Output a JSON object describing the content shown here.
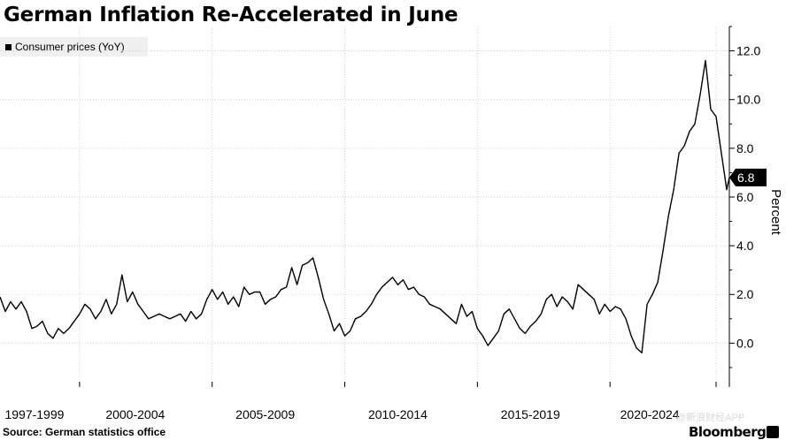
{
  "title": "German Inflation Re-Accelerated in June",
  "legend": {
    "label": "Consumer prices (YoY)",
    "swatch_color": "#000000"
  },
  "source": "Source: German statistics office",
  "brand": "Bloomberg",
  "watermark": "@新浪财经APP",
  "chart_data": {
    "type": "line",
    "title": "German Inflation Re-Accelerated in June",
    "xlabel": "",
    "ylabel": "Percent",
    "ylim": [
      -1.8,
      13
    ],
    "xlim": [
      1996.0,
      2023.5
    ],
    "y_ticks": [
      "0.0",
      "2.0",
      "4.0",
      "6.0",
      "8.0",
      "10.0",
      "12.0"
    ],
    "y_tick_values": [
      0,
      2,
      4,
      6,
      8,
      10,
      12
    ],
    "x_tick_labels": [
      "1997-1999",
      "2000-2004",
      "2005-2009",
      "2010-2014",
      "2015-2019",
      "2020-2024"
    ],
    "x_tick_positions": [
      1999.0,
      2004.0,
      2009.0,
      2014.0,
      2019.0,
      2023.0
    ],
    "x_label_centers": [
      1997.3,
      2001.1,
      2006.0,
      2011.0,
      2016.0,
      2020.5
    ],
    "grid": true,
    "last_value_label": "6.8",
    "series": [
      {
        "name": "Consumer prices (YoY)",
        "color": "#000000",
        "x": [
          1996.0,
          1996.2,
          1996.4,
          1996.6,
          1996.8,
          1997.0,
          1997.2,
          1997.4,
          1997.6,
          1997.8,
          1998.0,
          1998.2,
          1998.4,
          1998.6,
          1998.8,
          1999.0,
          1999.2,
          1999.4,
          1999.6,
          1999.8,
          2000.0,
          2000.2,
          2000.4,
          2000.6,
          2000.8,
          2001.0,
          2001.2,
          2001.4,
          2001.6,
          2001.8,
          2002.0,
          2002.2,
          2002.4,
          2002.6,
          2002.8,
          2003.0,
          2003.2,
          2003.4,
          2003.6,
          2003.8,
          2004.0,
          2004.2,
          2004.4,
          2004.6,
          2004.8,
          2005.0,
          2005.2,
          2005.4,
          2005.6,
          2005.8,
          2006.0,
          2006.2,
          2006.4,
          2006.6,
          2006.8,
          2007.0,
          2007.2,
          2007.4,
          2007.6,
          2007.8,
          2008.0,
          2008.2,
          2008.4,
          2008.6,
          2008.8,
          2009.0,
          2009.2,
          2009.4,
          2009.6,
          2009.8,
          2010.0,
          2010.2,
          2010.4,
          2010.6,
          2010.8,
          2011.0,
          2011.2,
          2011.4,
          2011.6,
          2011.8,
          2012.0,
          2012.2,
          2012.4,
          2012.6,
          2012.8,
          2013.0,
          2013.2,
          2013.4,
          2013.6,
          2013.8,
          2014.0,
          2014.2,
          2014.4,
          2014.6,
          2014.8,
          2015.0,
          2015.2,
          2015.4,
          2015.6,
          2015.8,
          2016.0,
          2016.2,
          2016.4,
          2016.6,
          2016.8,
          2017.0,
          2017.2,
          2017.4,
          2017.6,
          2017.8,
          2018.0,
          2018.2,
          2018.4,
          2018.6,
          2018.8,
          2019.0,
          2019.2,
          2019.4,
          2019.6,
          2019.8,
          2020.0,
          2020.2,
          2020.4,
          2020.6,
          2020.8,
          2021.0,
          2021.2,
          2021.4,
          2021.6,
          2021.8,
          2022.0,
          2022.2,
          2022.4,
          2022.6,
          2022.8,
          2023.0,
          2023.2,
          2023.4,
          2023.5
        ],
        "values": [
          1.9,
          1.3,
          1.7,
          1.4,
          1.7,
          1.3,
          0.6,
          0.7,
          0.9,
          0.4,
          0.2,
          0.6,
          0.4,
          0.6,
          0.9,
          1.2,
          1.6,
          1.4,
          1.0,
          1.3,
          1.8,
          1.2,
          1.6,
          2.8,
          1.7,
          2.1,
          1.6,
          1.3,
          1.0,
          1.1,
          1.2,
          1.1,
          1.0,
          1.1,
          1.2,
          0.9,
          1.3,
          1.0,
          1.2,
          1.8,
          2.2,
          1.8,
          2.1,
          1.6,
          1.9,
          1.5,
          2.3,
          2.0,
          2.1,
          2.1,
          1.6,
          1.8,
          1.9,
          2.2,
          2.3,
          3.1,
          2.4,
          3.2,
          3.3,
          3.5,
          2.7,
          1.8,
          1.2,
          0.5,
          0.8,
          0.3,
          0.5,
          1.0,
          1.1,
          1.3,
          1.6,
          2.0,
          2.3,
          2.5,
          2.7,
          2.4,
          2.6,
          2.2,
          2.3,
          2.0,
          1.9,
          1.6,
          1.5,
          1.4,
          1.2,
          1.0,
          0.8,
          1.6,
          1.1,
          1.3,
          0.6,
          0.3,
          -0.1,
          0.2,
          0.5,
          1.2,
          1.4,
          1.0,
          0.6,
          0.4,
          0.7,
          0.9,
          1.2,
          1.8,
          2.0,
          1.5,
          1.9,
          1.7,
          1.4,
          2.4,
          2.2,
          2.0,
          1.8,
          1.2,
          1.6,
          1.3,
          1.5,
          1.4,
          1.0,
          0.3,
          -0.2,
          -0.4,
          1.6,
          2.0,
          2.5,
          3.8,
          5.2,
          6.3,
          7.8,
          8.1,
          8.7,
          9.0,
          10.2,
          11.6,
          9.6,
          9.3,
          7.8,
          6.3,
          6.8
        ]
      }
    ]
  }
}
